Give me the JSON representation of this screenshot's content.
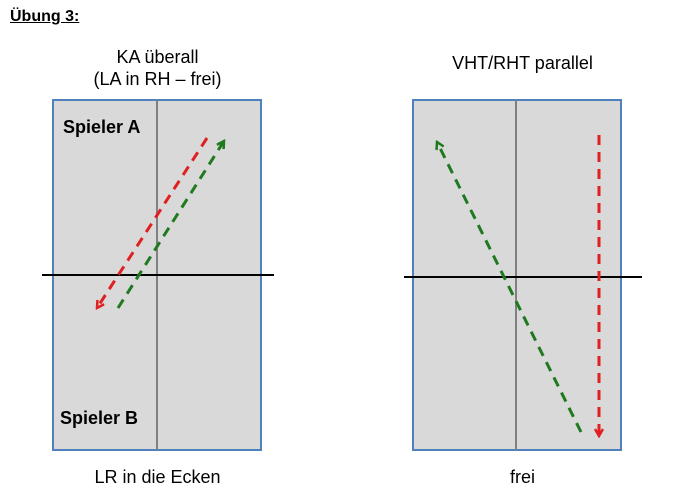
{
  "page": {
    "heading": "Übung 3:"
  },
  "left_diagram": {
    "title_line1": "KA überall",
    "title_line2": "(LA in RH – frei)",
    "player_a": "Spieler A",
    "player_b": "Spieler B",
    "footer": "LR in die Ecken"
  },
  "right_diagram": {
    "title": "VHT/RHT parallel",
    "footer": "frei"
  },
  "colors": {
    "court_fill": "#d9d9d9",
    "court_border": "#4f81bd",
    "center_line": "#808080",
    "net": "#000000",
    "red_arrow": "#e02020",
    "green_arrow": "#1f7a1f"
  }
}
